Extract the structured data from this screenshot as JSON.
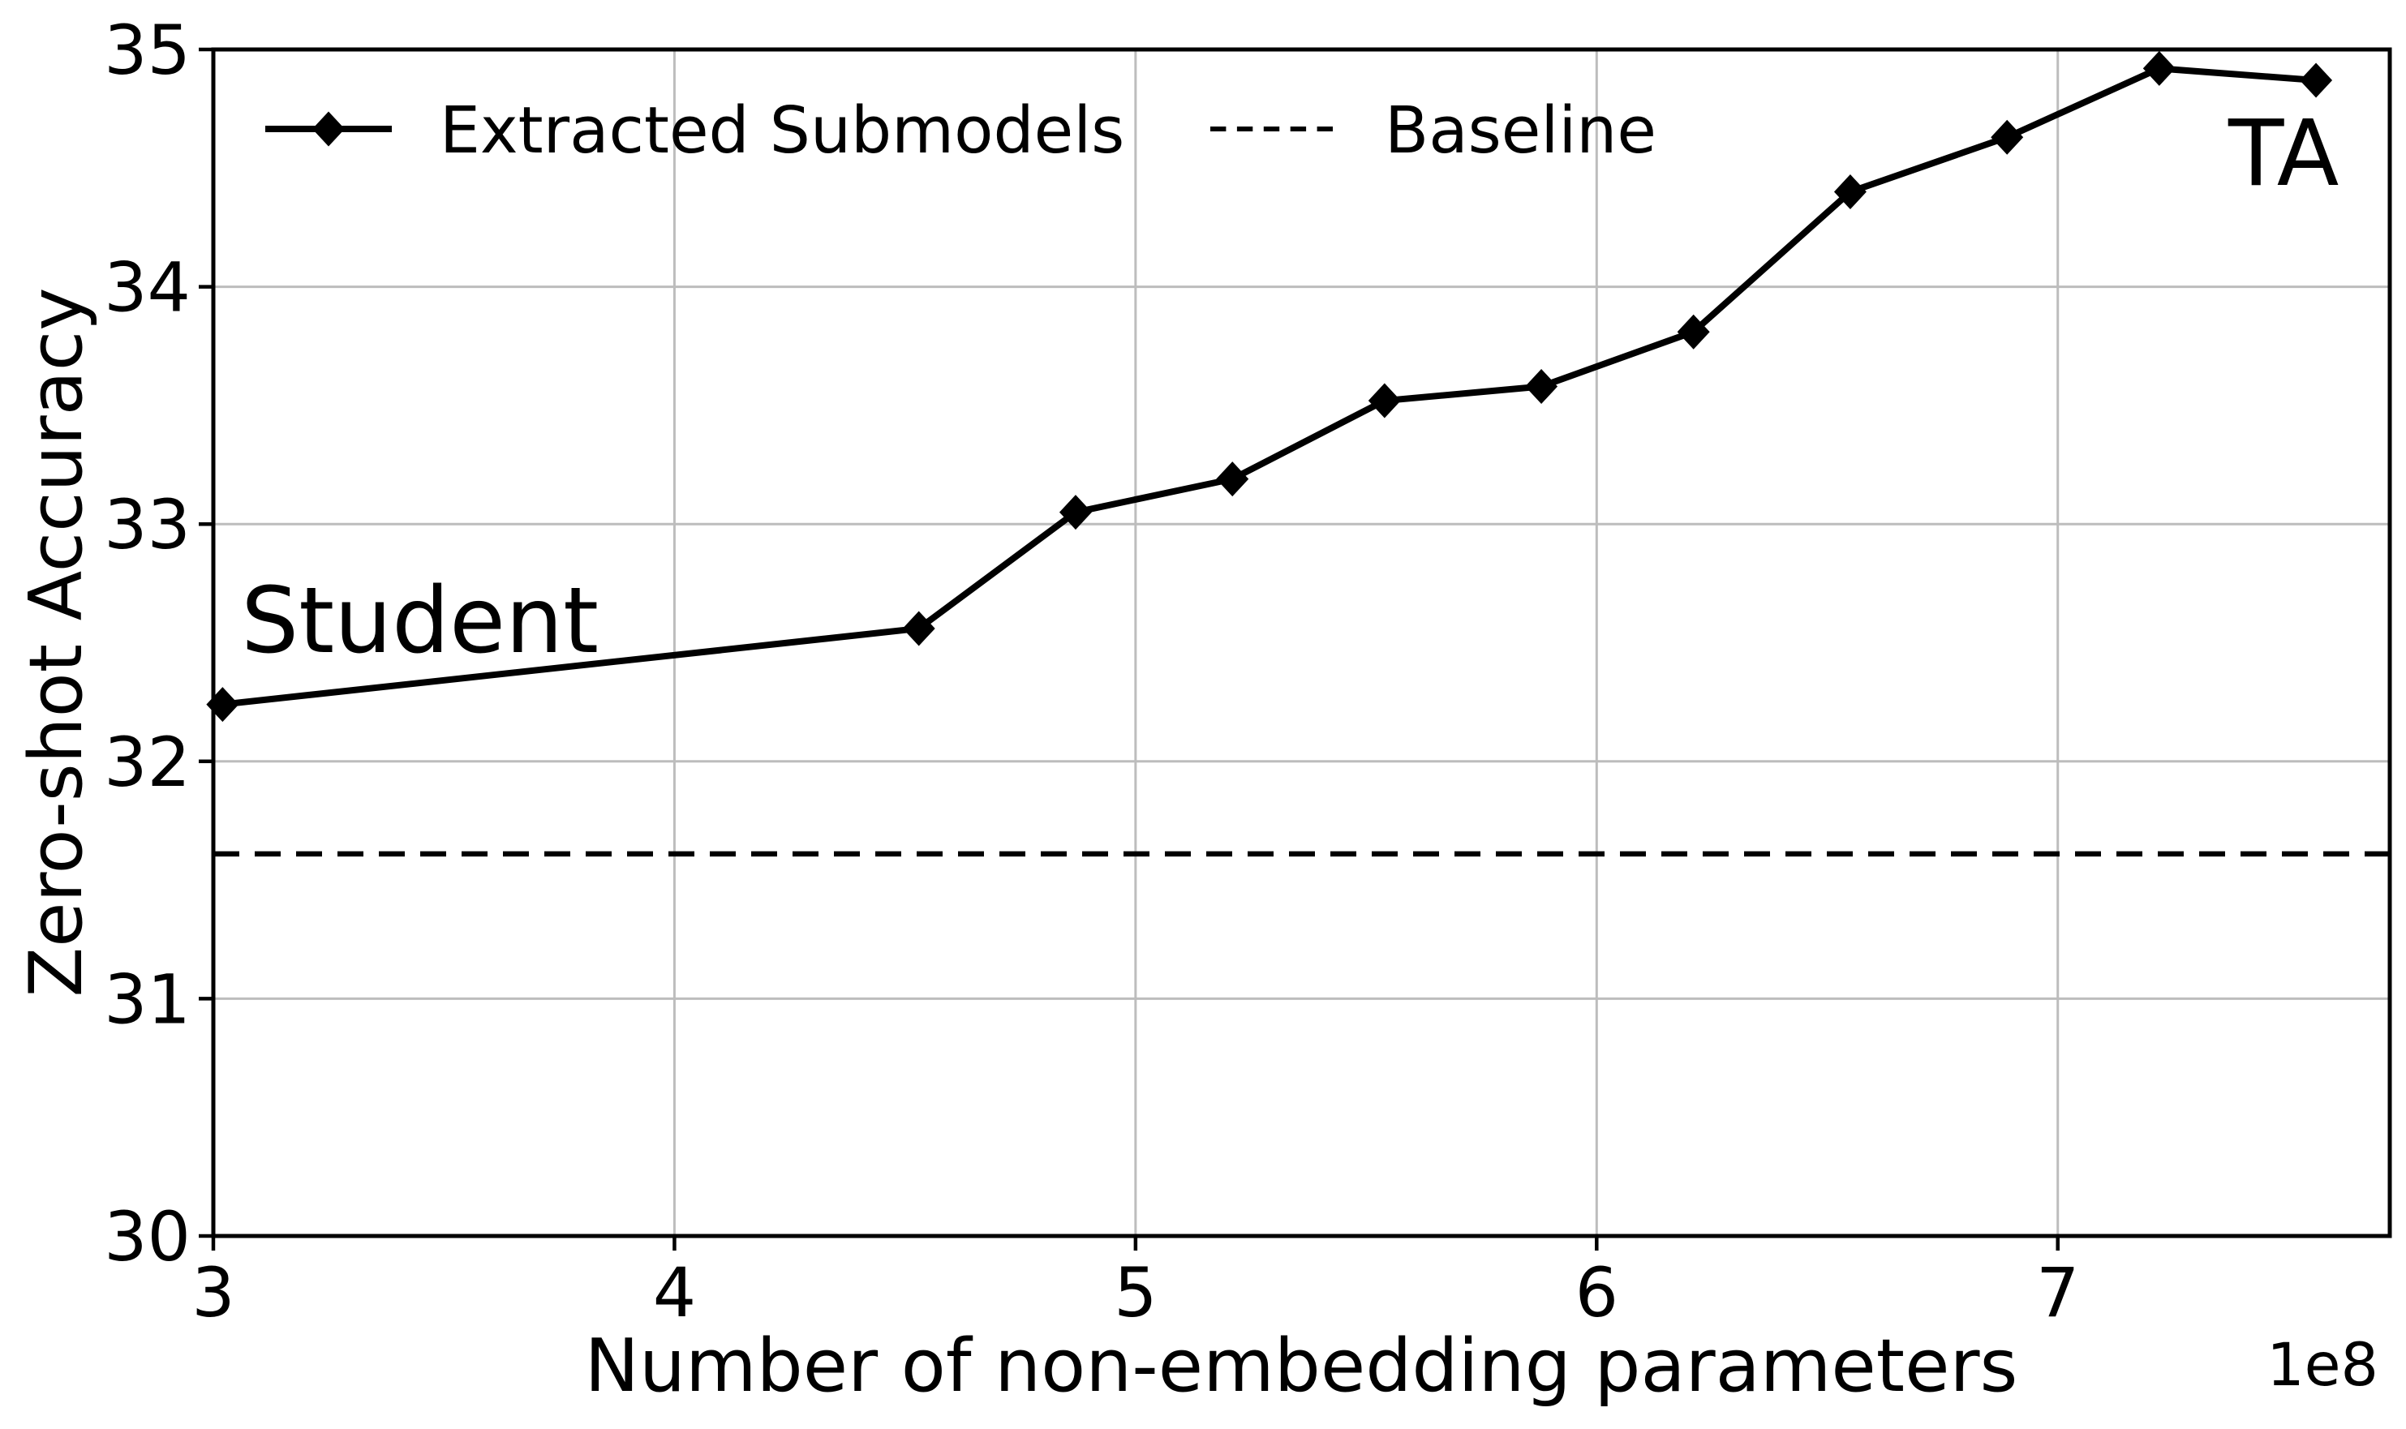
{
  "chart_data": {
    "type": "line",
    "title": "",
    "xlabel": "Number of non-embedding parameters",
    "ylabel": "Zero-shot Accuracy",
    "x_offset_label": "1e8",
    "xlim": [
      3.0,
      7.72
    ],
    "ylim": [
      30,
      35
    ],
    "x_ticks": [
      3,
      4,
      5,
      6,
      7
    ],
    "y_ticks": [
      30,
      31,
      32,
      33,
      34,
      35
    ],
    "grid": true,
    "grid_color": "#bdbdbd",
    "legend_position": "upper-left-horizontal",
    "legend": [
      "Extracted Submodels",
      "Baseline"
    ],
    "series": [
      {
        "name": "Extracted Submodels",
        "style": "solid-line-with-diamond-markers",
        "color": "#000000",
        "x": [
          3.02,
          4.53,
          4.87,
          5.21,
          5.54,
          5.88,
          6.21,
          6.55,
          6.89,
          7.22,
          7.56
        ],
        "y": [
          32.24,
          32.56,
          33.05,
          33.19,
          33.52,
          33.58,
          33.81,
          34.4,
          34.63,
          34.92,
          34.87
        ]
      },
      {
        "name": "Baseline",
        "style": "dashed-horizontal-line",
        "color": "#000000",
        "y": 31.61
      }
    ],
    "annotations": [
      {
        "text": "Student",
        "x": 3.06,
        "y": 32.46,
        "color": "#0000ff"
      },
      {
        "text": "TA",
        "x": 7.37,
        "y": 34.43,
        "color": "#0000ff"
      }
    ]
  },
  "colors": {
    "background": "#ffffff",
    "axis": "#000000",
    "series": "#000000",
    "grid": "#bdbdbd",
    "annotation": "#0000ff"
  }
}
